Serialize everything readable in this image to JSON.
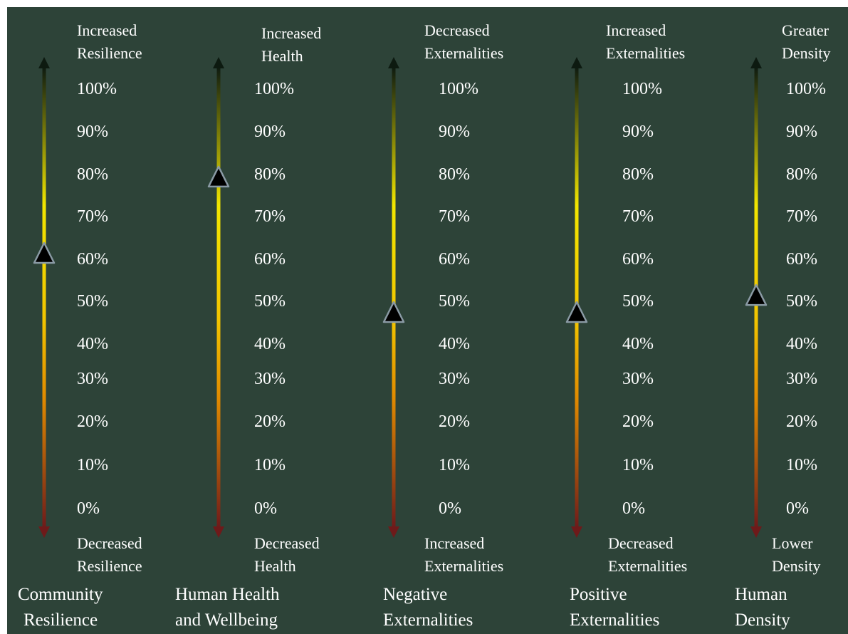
{
  "chart_data": {
    "type": "gauge",
    "ticks": [
      "100%",
      "90%",
      "80%",
      "70%",
      "60%",
      "50%",
      "40%",
      "30%",
      "20%",
      "10%",
      "0%"
    ],
    "range": [
      0,
      100
    ],
    "colors": {
      "background": "#2d4338",
      "top": "#0d1a10",
      "upper": "#f2e600",
      "middle": "#f2c400",
      "lower": "#e08a00",
      "bottom": "#6e1a1a",
      "marker_fill": "#000000",
      "marker_stroke": "#8a9aa4"
    },
    "marker_icon": "triangle-up",
    "gauges": [
      {
        "title": [
          "Community",
          "Resilience"
        ],
        "top_label": [
          "Increased",
          "Resilience"
        ],
        "bottom_label": [
          "Decreased",
          "Resilience"
        ],
        "value": 61
      },
      {
        "title": [
          "Human Health",
          "and Wellbeing"
        ],
        "top_label": [
          "Increased",
          "Health"
        ],
        "bottom_label": [
          "Decreased",
          "Health"
        ],
        "value": 79
      },
      {
        "title": [
          "Negative",
          "Externalities"
        ],
        "top_label": [
          "Decreased",
          "Externalities"
        ],
        "bottom_label": [
          "Increased",
          "Externalities"
        ],
        "value": 47
      },
      {
        "title": [
          "Positive",
          "Externalities"
        ],
        "top_label": [
          "Increased",
          "Externalities"
        ],
        "bottom_label": [
          "Decreased",
          "Externalities"
        ],
        "value": 47
      },
      {
        "title": [
          "Human",
          "Density"
        ],
        "top_label": [
          "Greater",
          "Density"
        ],
        "bottom_label": [
          "Lower",
          "Density"
        ],
        "value": 51
      }
    ]
  }
}
